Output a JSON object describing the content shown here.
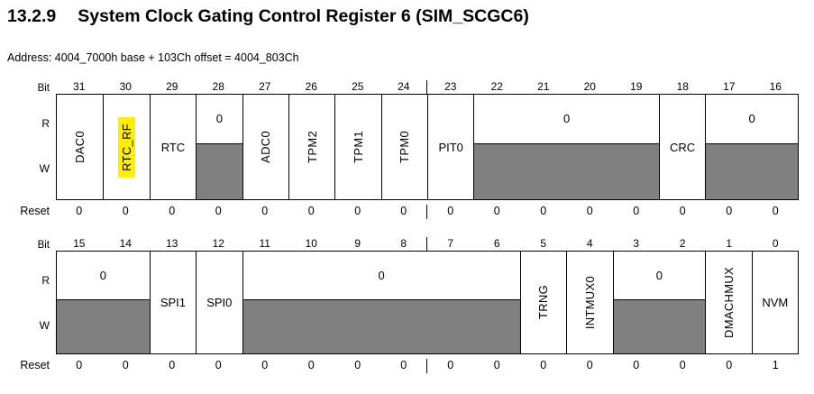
{
  "page": {
    "section_number": "13.2.9",
    "title": "System Clock Gating Control Register 6 (SIM_SCGC6)",
    "address_line": "Address: 4004_7000h base + 103Ch offset = 4004_803Ch"
  },
  "labels": {
    "bit": "Bit",
    "read": "R",
    "write": "W",
    "reset": "Reset"
  },
  "colors": {
    "reserved_gray": "#808080",
    "highlight_yellow": "#ffee00",
    "line_black": "#000000"
  },
  "register_rows": [
    {
      "bit_numbers": [
        "31",
        "30",
        "29",
        "28",
        "27",
        "26",
        "25",
        "24",
        "23",
        "22",
        "21",
        "20",
        "19",
        "18",
        "17",
        "16"
      ],
      "fields": [
        {
          "label": "DAC0",
          "span": 1,
          "kind": "rw",
          "orientation": "vertical"
        },
        {
          "label": "RTC_RF",
          "span": 1,
          "kind": "rw",
          "orientation": "vertical",
          "highlighted": true
        },
        {
          "label": "RTC",
          "span": 1,
          "kind": "rw",
          "orientation": "horizontal"
        },
        {
          "label": "0",
          "span": 1,
          "kind": "reserved"
        },
        {
          "label": "ADC0",
          "span": 1,
          "kind": "rw",
          "orientation": "vertical"
        },
        {
          "label": "TPM2",
          "span": 1,
          "kind": "rw",
          "orientation": "vertical"
        },
        {
          "label": "TPM1",
          "span": 1,
          "kind": "rw",
          "orientation": "vertical"
        },
        {
          "label": "TPM0",
          "span": 1,
          "kind": "rw",
          "orientation": "vertical"
        },
        {
          "label": "PIT0",
          "span": 1,
          "kind": "rw",
          "orientation": "horizontal"
        },
        {
          "label": "0",
          "span": 4,
          "kind": "reserved"
        },
        {
          "label": "CRC",
          "span": 1,
          "kind": "rw",
          "orientation": "horizontal"
        },
        {
          "label": "0",
          "span": 2,
          "kind": "reserved"
        }
      ],
      "reset_values": [
        "0",
        "0",
        "0",
        "0",
        "0",
        "0",
        "0",
        "0",
        "0",
        "0",
        "0",
        "0",
        "0",
        "0",
        "0",
        "0"
      ]
    },
    {
      "bit_numbers": [
        "15",
        "14",
        "13",
        "12",
        "11",
        "10",
        "9",
        "8",
        "7",
        "6",
        "5",
        "4",
        "3",
        "2",
        "1",
        "0"
      ],
      "fields": [
        {
          "label": "0",
          "span": 2,
          "kind": "reserved"
        },
        {
          "label": "SPI1",
          "span": 1,
          "kind": "rw",
          "orientation": "horizontal"
        },
        {
          "label": "SPI0",
          "span": 1,
          "kind": "rw",
          "orientation": "horizontal"
        },
        {
          "label": "0",
          "span": 6,
          "kind": "reserved"
        },
        {
          "label": "TRNG",
          "span": 1,
          "kind": "rw",
          "orientation": "vertical"
        },
        {
          "label": "INTMUX0",
          "span": 1,
          "kind": "rw",
          "orientation": "vertical"
        },
        {
          "label": "0",
          "span": 2,
          "kind": "reserved"
        },
        {
          "label": "DMACHMUX",
          "span": 1,
          "kind": "rw",
          "orientation": "vertical"
        },
        {
          "label": "NVM",
          "span": 1,
          "kind": "rw",
          "orientation": "horizontal"
        }
      ],
      "reset_values": [
        "0",
        "0",
        "0",
        "0",
        "0",
        "0",
        "0",
        "0",
        "0",
        "0",
        "0",
        "0",
        "0",
        "0",
        "0",
        "1"
      ]
    }
  ]
}
